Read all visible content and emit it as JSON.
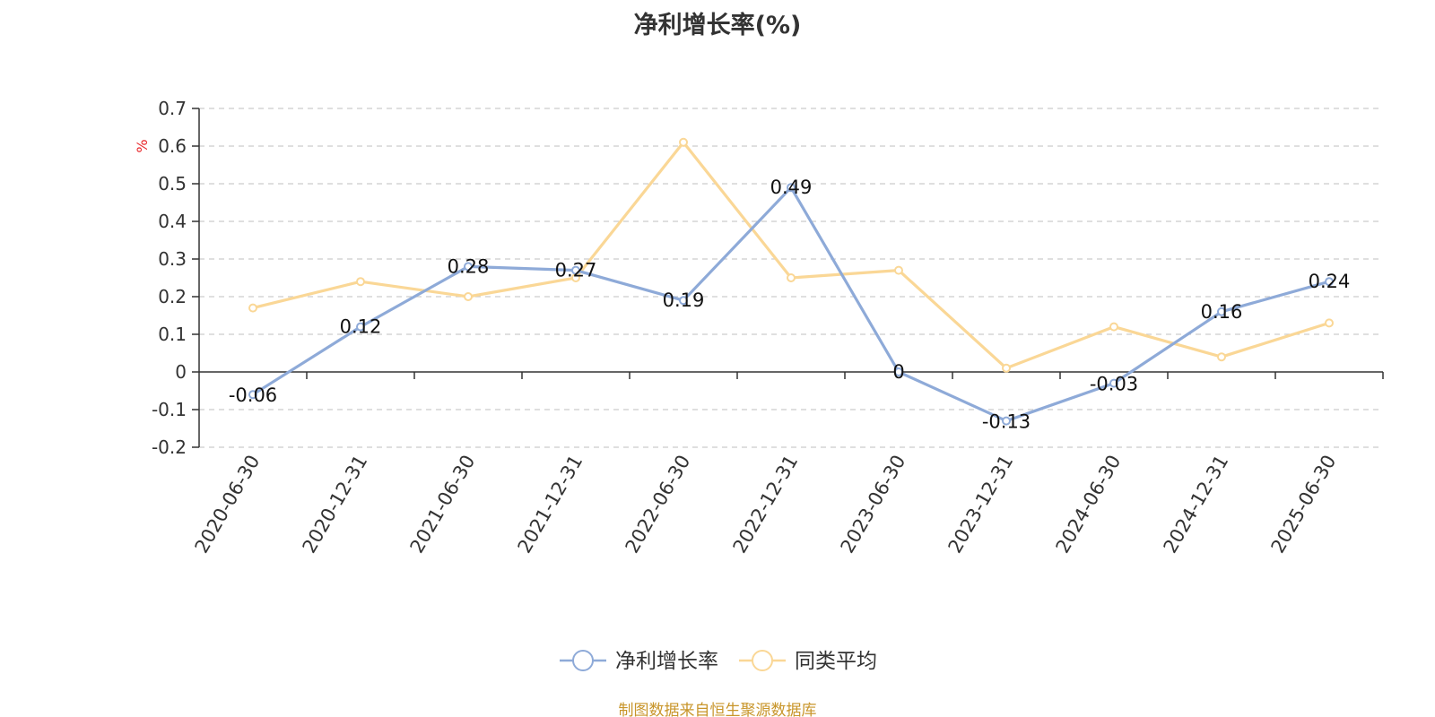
{
  "chart_data": {
    "type": "line",
    "title": "净利增长率(%)",
    "ylabel": "%",
    "xlabel": "",
    "categories": [
      "2020-06-30",
      "2020-12-31",
      "2021-06-30",
      "2021-12-31",
      "2022-06-30",
      "2022-12-31",
      "2023-06-30",
      "2023-12-31",
      "2024-06-30",
      "2024-12-31",
      "2025-06-30"
    ],
    "series": [
      {
        "name": "净利增长率",
        "color": "#8eaad8",
        "values": [
          -0.06,
          0.12,
          0.28,
          0.27,
          0.19,
          0.49,
          0,
          -0.13,
          -0.03,
          0.16,
          0.24
        ],
        "labels": [
          "-0.06",
          "0.12",
          "0.28",
          "0.27",
          "0.19",
          "0.49",
          "0",
          "-0.13",
          "-0.03",
          "0.16",
          "0.24"
        ]
      },
      {
        "name": "同类平均",
        "color": "#fad796",
        "values": [
          0.17,
          0.24,
          0.2,
          0.25,
          0.61,
          0.25,
          0.27,
          0.01,
          0.12,
          0.04,
          0.13
        ]
      }
    ],
    "ylim": [
      -0.2,
      0.7
    ],
    "yticks": [
      0.7,
      0.6,
      0.5,
      0.4,
      0.3,
      0.2,
      0.1,
      0,
      -0.1,
      -0.2
    ],
    "ytick_labels": [
      "0.7",
      "0.6",
      "0.5",
      "0.4",
      "0.3",
      "0.2",
      "0.1",
      "0",
      "-0.1",
      "-0.2"
    ],
    "grid": true,
    "legend_position": "bottom-center"
  },
  "source_note": "制图数据来自恒生聚源数据库"
}
